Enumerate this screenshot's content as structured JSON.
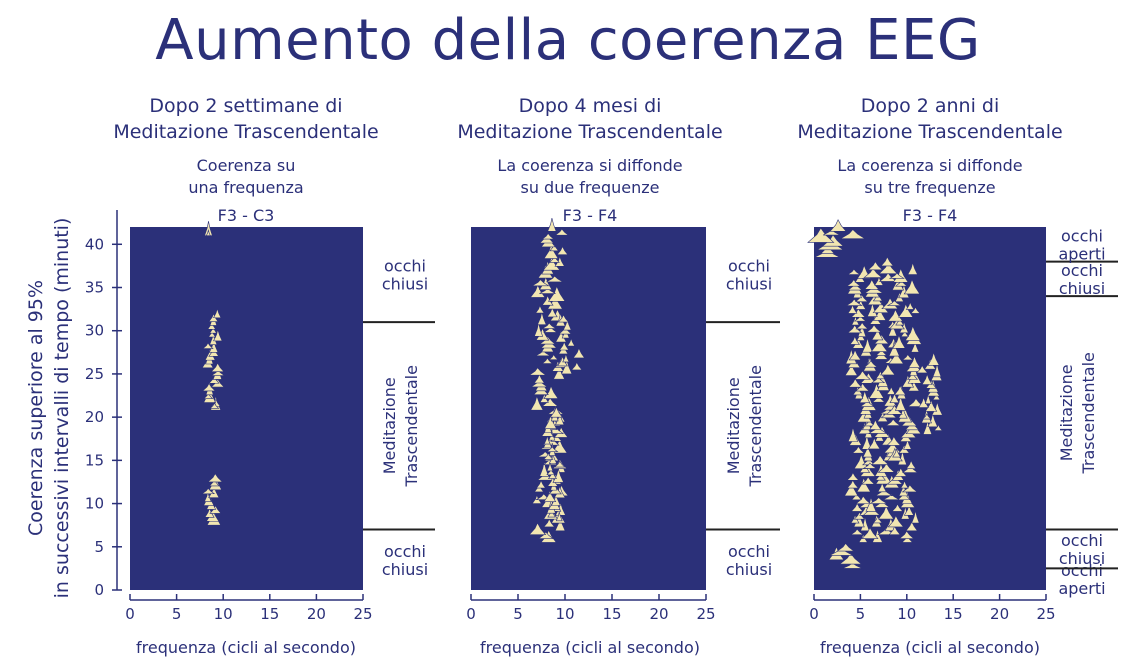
{
  "title": "Aumento della coerenza EEG",
  "ylabel": [
    "Coerenza superiore al 95%",
    "in successivi intervalli di tempo (minuti)"
  ],
  "colors": {
    "text": "#2b3079",
    "panel_bg": "#2b3079",
    "peaks": "#f2e6b1"
  },
  "chart_data": [
    {
      "type": "heatmap",
      "heading": [
        "Dopo 2 settimane di",
        "Meditazione Trascendentale"
      ],
      "subheading": [
        "Coerenza su",
        "una frequenza"
      ],
      "channel": "F3 - C3",
      "xlabel": "frequenza (cicli al secondo)",
      "xlim": [
        0,
        25
      ],
      "xticks": [
        0,
        5,
        10,
        15,
        20,
        25
      ],
      "ylim": [
        0,
        42
      ],
      "yticks": [
        0,
        5,
        10,
        15,
        20,
        25,
        30,
        35,
        40
      ],
      "phases": [
        {
          "label": [
            "occhi",
            "chiusi"
          ],
          "from": 0,
          "to": 7,
          "vertical": false
        },
        {
          "label": [
            "Meditazione",
            "Trascendentale"
          ],
          "from": 7,
          "to": 31,
          "vertical": true
        },
        {
          "label": [
            "occhi",
            "chiusi"
          ],
          "from": 31,
          "to": 42,
          "vertical": false
        }
      ],
      "peaks": [
        {
          "f": [
            8.4,
            8.6
          ],
          "t": [
            41,
            41
          ],
          "w": 0.7
        },
        {
          "f": [
            8.2,
            9.5
          ],
          "t": [
            20.8,
            31.5
          ],
          "w": 1.1
        },
        {
          "f": [
            8.3,
            9.4
          ],
          "t": [
            7.5,
            12.5
          ],
          "w": 1.2
        },
        {
          "f": [
            9.0,
            9.2
          ],
          "t": [
            21,
            21
          ],
          "w": 0.8
        }
      ]
    },
    {
      "type": "heatmap",
      "heading": [
        "Dopo 4 mesi di",
        "Meditazione Trascendentale"
      ],
      "subheading": [
        "La coerenza si diffonde",
        "su due frequenze"
      ],
      "channel": "F3 - F4",
      "xlabel": "frequenza (cicli al secondo)",
      "xlim": [
        0,
        25
      ],
      "xticks": [
        0,
        5,
        10,
        15,
        20,
        25
      ],
      "ylim": [
        0,
        42
      ],
      "yticks": [],
      "phases": [
        {
          "label": [
            "occhi",
            "chiusi"
          ],
          "from": 0,
          "to": 7,
          "vertical": false
        },
        {
          "label": [
            "Meditazione",
            "Trascendentale"
          ],
          "from": 7,
          "to": 31,
          "vertical": true
        },
        {
          "label": [
            "occhi",
            "chiusi"
          ],
          "from": 31,
          "to": 42,
          "vertical": false
        }
      ],
      "peaks": [
        {
          "f": [
            7.0,
            9.8
          ],
          "t": [
            5.5,
            41.5
          ],
          "w": 1.4
        },
        {
          "f": [
            9.5,
            11.5
          ],
          "t": [
            25,
            31
          ],
          "w": 1.0
        },
        {
          "f": [
            8.0,
            9.5
          ],
          "t": [
            8,
            20
          ],
          "w": 1.0
        }
      ]
    },
    {
      "type": "heatmap",
      "heading": [
        "Dopo 2 anni di",
        "Meditazione Trascendentale"
      ],
      "subheading": [
        "La coerenza si diffonde",
        "su tre frequenze"
      ],
      "channel": "F3 - F4",
      "xlabel": "frequenza (cicli al secondo)",
      "xlim": [
        0,
        25
      ],
      "xticks": [
        0,
        5,
        10,
        15,
        20,
        25
      ],
      "ylim": [
        0,
        42
      ],
      "yticks": [],
      "phases": [
        {
          "label": [
            "occhi",
            "aperti"
          ],
          "from": 0,
          "to": 2.5,
          "vertical": false
        },
        {
          "label": [
            "occhi",
            "chiusi"
          ],
          "from": 2.5,
          "to": 7,
          "vertical": false
        },
        {
          "label": [
            "Meditazione",
            "Trascendentale"
          ],
          "from": 7,
          "to": 34,
          "vertical": true
        },
        {
          "label": [
            "occhi",
            "chiusi"
          ],
          "from": 34,
          "to": 38,
          "vertical": false
        },
        {
          "label": [
            "occhi",
            "aperti"
          ],
          "from": 38,
          "to": 42,
          "vertical": false
        }
      ],
      "peaks": [
        {
          "f": [
            4.0,
            6.0
          ],
          "t": [
            5.5,
            36.5
          ],
          "w": 1.3
        },
        {
          "f": [
            6.0,
            8.6
          ],
          "t": [
            5.5,
            37.5
          ],
          "w": 1.5
        },
        {
          "f": [
            8.6,
            11.0
          ],
          "t": [
            5.5,
            36.5
          ],
          "w": 1.3
        },
        {
          "f": [
            11.5,
            13.5
          ],
          "t": [
            18,
            26
          ],
          "w": 1.0
        },
        {
          "f": [
            0.5,
            4.5
          ],
          "t": [
            38.5,
            41.5
          ],
          "w": 2.2
        },
        {
          "f": [
            0.5,
            4.5
          ],
          "t": [
            2.5,
            4.5
          ],
          "w": 2.0
        }
      ]
    }
  ]
}
